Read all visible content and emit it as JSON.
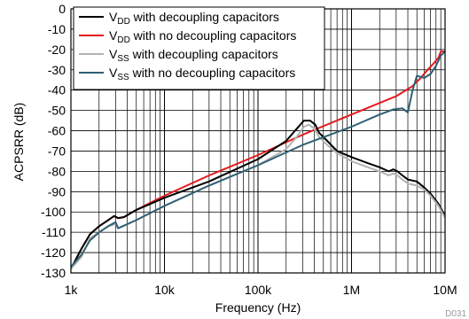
{
  "chart_data": {
    "type": "line",
    "title": "",
    "xlabel": "Frequency (Hz)",
    "ylabel": "ACPSRR (dB)",
    "x_scale": "log",
    "xlim": [
      1000,
      10000000
    ],
    "ylim": [
      -130,
      0
    ],
    "grid": true,
    "legend_position": "top-left",
    "x_ticks": [
      {
        "value": 1000,
        "label": "1k"
      },
      {
        "value": 10000,
        "label": "10k"
      },
      {
        "value": 100000,
        "label": "100k"
      },
      {
        "value": 1000000,
        "label": "1M"
      },
      {
        "value": 10000000,
        "label": "10M"
      }
    ],
    "y_ticks": [
      0,
      -10,
      -20,
      -30,
      -40,
      -50,
      -60,
      -70,
      -80,
      -90,
      -100,
      -110,
      -120,
      -130
    ],
    "series": [
      {
        "name_main": "V",
        "name_sub": "DD",
        "name_rest": " with decoupling capacitors",
        "color": "#000000",
        "points": [
          [
            1000,
            -128
          ],
          [
            1300,
            -118
          ],
          [
            1600,
            -111
          ],
          [
            2000,
            -107
          ],
          [
            2500,
            -104
          ],
          [
            2900,
            -102
          ],
          [
            3200,
            -103
          ],
          [
            3700,
            -102.5
          ],
          [
            5000,
            -99
          ],
          [
            10000,
            -93
          ],
          [
            30000,
            -85
          ],
          [
            100000,
            -74
          ],
          [
            200000,
            -65
          ],
          [
            260000,
            -59
          ],
          [
            310000,
            -55
          ],
          [
            360000,
            -55
          ],
          [
            410000,
            -57
          ],
          [
            450000,
            -61
          ],
          [
            550000,
            -65
          ],
          [
            700000,
            -70
          ],
          [
            1000000,
            -73
          ],
          [
            1500000,
            -76
          ],
          [
            2000000,
            -78
          ],
          [
            2500000,
            -80
          ],
          [
            2800000,
            -79
          ],
          [
            3100000,
            -80
          ],
          [
            3500000,
            -82
          ],
          [
            4000000,
            -84
          ],
          [
            5000000,
            -85
          ],
          [
            6000000,
            -88
          ],
          [
            7000000,
            -91
          ],
          [
            8500000,
            -96
          ],
          [
            10000000,
            -102
          ]
        ]
      },
      {
        "name_main": "V",
        "name_sub": "DD",
        "name_rest": " with no decoupling capacitors",
        "color": "#e41a1c",
        "points": [
          [
            1000,
            -128
          ],
          [
            1300,
            -118
          ],
          [
            1600,
            -111
          ],
          [
            2000,
            -107
          ],
          [
            2500,
            -104
          ],
          [
            2900,
            -102
          ],
          [
            3200,
            -103
          ],
          [
            3700,
            -102.5
          ],
          [
            5000,
            -99
          ],
          [
            10000,
            -92
          ],
          [
            30000,
            -82
          ],
          [
            100000,
            -72
          ],
          [
            300000,
            -62
          ],
          [
            1000000,
            -52
          ],
          [
            3000000,
            -43
          ],
          [
            4500000,
            -38
          ],
          [
            5500000,
            -34
          ],
          [
            6500000,
            -30
          ],
          [
            7500000,
            -27
          ],
          [
            8500000,
            -24
          ],
          [
            9000000,
            -21
          ],
          [
            10000000,
            -21
          ]
        ]
      },
      {
        "name_main": "V",
        "name_sub": "SS",
        "name_rest": " with decoupling capacitors",
        "color": "#b2b2b2",
        "points": [
          [
            1000,
            -128
          ],
          [
            1300,
            -122
          ],
          [
            1600,
            -113
          ],
          [
            2000,
            -110
          ],
          [
            2500,
            -107
          ],
          [
            3000,
            -106
          ],
          [
            3200,
            -108
          ],
          [
            5000,
            -104
          ],
          [
            10000,
            -97
          ],
          [
            30000,
            -87
          ],
          [
            100000,
            -77
          ],
          [
            200000,
            -69
          ],
          [
            260000,
            -63
          ],
          [
            310000,
            -58
          ],
          [
            350000,
            -57
          ],
          [
            400000,
            -59
          ],
          [
            450000,
            -63
          ],
          [
            550000,
            -67
          ],
          [
            700000,
            -71
          ],
          [
            1000000,
            -75
          ],
          [
            1500000,
            -78
          ],
          [
            2000000,
            -80
          ],
          [
            2500000,
            -82
          ],
          [
            2800000,
            -81
          ],
          [
            3100000,
            -82
          ],
          [
            3500000,
            -84
          ],
          [
            4000000,
            -86
          ],
          [
            5000000,
            -87
          ],
          [
            6000000,
            -89
          ],
          [
            7000000,
            -92
          ],
          [
            8500000,
            -97
          ],
          [
            10000000,
            -103
          ]
        ]
      },
      {
        "name_main": "V",
        "name_sub": "SS",
        "name_rest": " with no decoupling capacitors",
        "color": "#2f5f73",
        "points": [
          [
            1000,
            -127
          ],
          [
            1300,
            -121
          ],
          [
            1600,
            -114
          ],
          [
            2000,
            -110
          ],
          [
            2500,
            -107
          ],
          [
            3000,
            -105
          ],
          [
            3200,
            -108
          ],
          [
            5000,
            -104
          ],
          [
            10000,
            -97
          ],
          [
            30000,
            -87
          ],
          [
            100000,
            -77
          ],
          [
            300000,
            -67
          ],
          [
            1000000,
            -58
          ],
          [
            2000000,
            -52
          ],
          [
            2800000,
            -49.5
          ],
          [
            3500000,
            -49
          ],
          [
            4000000,
            -51
          ],
          [
            4500000,
            -40
          ],
          [
            5000000,
            -33
          ],
          [
            6000000,
            -34
          ],
          [
            7000000,
            -32
          ],
          [
            8000000,
            -28
          ],
          [
            9000000,
            -23
          ],
          [
            10000000,
            -21
          ]
        ]
      }
    ]
  },
  "figure_id": "D031"
}
